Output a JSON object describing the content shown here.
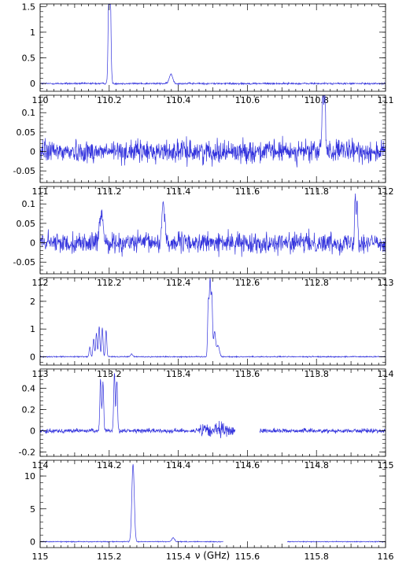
{
  "chart_data": {
    "type": "line",
    "xlabel": "ν (GHz)",
    "line_color": "#3333dd",
    "panels": [
      {
        "xlim": [
          110,
          111
        ],
        "ylim": [
          -0.15,
          1.55
        ],
        "xticks": [
          110,
          110.2,
          110.4,
          110.6,
          110.8,
          111
        ],
        "xtick_labels": [
          "110",
          "110.2",
          "110.4",
          "110.6",
          "110.8",
          "111"
        ],
        "yticks": [
          0,
          0.5,
          1,
          1.5
        ],
        "ytick_labels": [
          "0",
          "0.5",
          "1",
          "1.5"
        ],
        "noise": 0.012,
        "gaps": [],
        "peaks": [
          {
            "x": 110.199,
            "height": 1.45,
            "width": 0.002
          },
          {
            "x": 110.203,
            "height": 1.4,
            "width": 0.002
          },
          {
            "x": 110.201,
            "height": 0.6,
            "width": 0.0035
          },
          {
            "x": 110.379,
            "height": 0.18,
            "width": 0.005
          }
        ]
      },
      {
        "xlim": [
          111,
          112
        ],
        "ylim": [
          -0.08,
          0.145
        ],
        "xticks": [
          111,
          111.2,
          111.4,
          111.6,
          111.8,
          112
        ],
        "xtick_labels": [
          "111",
          "111.2",
          "111.4",
          "111.6",
          "111.8",
          "112"
        ],
        "yticks": [
          -0.05,
          0,
          0.05,
          0.1
        ],
        "ytick_labels": [
          "-0.05",
          "0",
          "0.05",
          "0.1"
        ],
        "noise": 0.02,
        "gaps": [],
        "peaks": [
          {
            "x": 111.818,
            "height": 0.11,
            "width": 0.002
          },
          {
            "x": 111.824,
            "height": 0.12,
            "width": 0.002
          },
          {
            "x": 111.821,
            "height": 0.06,
            "width": 0.004
          }
        ]
      },
      {
        "xlim": [
          112,
          113
        ],
        "ylim": [
          -0.08,
          0.145
        ],
        "xticks": [
          112,
          112.2,
          112.4,
          112.6,
          112.8,
          113
        ],
        "xtick_labels": [
          "112",
          "112.2",
          "112.4",
          "112.6",
          "112.8",
          "113"
        ],
        "yticks": [
          -0.05,
          0,
          0.05,
          0.1
        ],
        "ytick_labels": [
          "-0.05",
          "0",
          "0.05",
          "0.1"
        ],
        "noise": 0.018,
        "gaps": [],
        "peaks": [
          {
            "x": 112.175,
            "height": 0.04,
            "width": 0.004
          },
          {
            "x": 112.18,
            "height": 0.05,
            "width": 0.004
          },
          {
            "x": 112.355,
            "height": 0.08,
            "width": 0.003
          },
          {
            "x": 112.36,
            "height": 0.06,
            "width": 0.003
          },
          {
            "x": 112.912,
            "height": 0.12,
            "width": 0.002
          },
          {
            "x": 112.918,
            "height": 0.11,
            "width": 0.002
          }
        ]
      },
      {
        "xlim": [
          113,
          114
        ],
        "ylim": [
          -0.3,
          2.85
        ],
        "xticks": [
          113,
          113.2,
          113.4,
          113.6,
          113.8,
          114
        ],
        "xtick_labels": [
          "113",
          "113.2",
          "113.4",
          "113.6",
          "113.8",
          "114"
        ],
        "yticks": [
          0,
          1,
          2
        ],
        "ytick_labels": [
          "0",
          "1",
          "2"
        ],
        "noise": 0.015,
        "gaps": [],
        "peaks": [
          {
            "x": 113.144,
            "height": 0.35,
            "width": 0.002
          },
          {
            "x": 113.155,
            "height": 0.65,
            "width": 0.002
          },
          {
            "x": 113.163,
            "height": 0.85,
            "width": 0.002
          },
          {
            "x": 113.171,
            "height": 1.1,
            "width": 0.002
          },
          {
            "x": 113.18,
            "height": 1.05,
            "width": 0.002
          },
          {
            "x": 113.191,
            "height": 0.95,
            "width": 0.002
          },
          {
            "x": 113.265,
            "height": 0.1,
            "width": 0.003
          },
          {
            "x": 113.487,
            "height": 2.0,
            "width": 0.002
          },
          {
            "x": 113.492,
            "height": 2.7,
            "width": 0.002
          },
          {
            "x": 113.497,
            "height": 2.2,
            "width": 0.002
          },
          {
            "x": 113.505,
            "height": 0.9,
            "width": 0.003
          },
          {
            "x": 113.515,
            "height": 0.4,
            "width": 0.004
          }
        ]
      },
      {
        "xlim": [
          114,
          115
        ],
        "ylim": [
          -0.24,
          0.58
        ],
        "xticks": [
          114,
          114.2,
          114.4,
          114.6,
          114.8,
          115
        ],
        "xtick_labels": [
          "114",
          "114.2",
          "114.4",
          "114.6",
          "114.8",
          "115"
        ],
        "yticks": [
          -0.2,
          0,
          0.2,
          0.4
        ],
        "ytick_labels": [
          "-0.2",
          "0",
          "0.2",
          "0.4"
        ],
        "noise": 0.014,
        "gaps": [
          [
            114.565,
            114.635
          ]
        ],
        "noisy_ranges": [
          [
            114.46,
            114.56,
            0.05
          ]
        ],
        "peaks": [
          {
            "x": 114.175,
            "height": 0.5,
            "width": 0.002
          },
          {
            "x": 114.182,
            "height": 0.45,
            "width": 0.002
          },
          {
            "x": 114.215,
            "height": 0.55,
            "width": 0.002
          },
          {
            "x": 114.222,
            "height": 0.48,
            "width": 0.002
          }
        ]
      },
      {
        "xlim": [
          115,
          116
        ],
        "ylim": [
          -0.9,
          12.4
        ],
        "xticks": [
          115,
          115.2,
          115.4,
          115.6,
          115.8,
          116
        ],
        "xtick_labels": [
          "115",
          "115.2",
          "115.4",
          "115.6",
          "115.8",
          "116"
        ],
        "yticks": [
          0,
          5,
          10
        ],
        "ytick_labels": [
          "0",
          "5",
          "10"
        ],
        "noise": 0.05,
        "gaps": [
          [
            115.53,
            115.715
          ]
        ],
        "peaks": [
          {
            "x": 115.269,
            "height": 11.8,
            "width": 0.0035
          },
          {
            "x": 115.385,
            "height": 0.6,
            "width": 0.004
          }
        ]
      }
    ]
  }
}
